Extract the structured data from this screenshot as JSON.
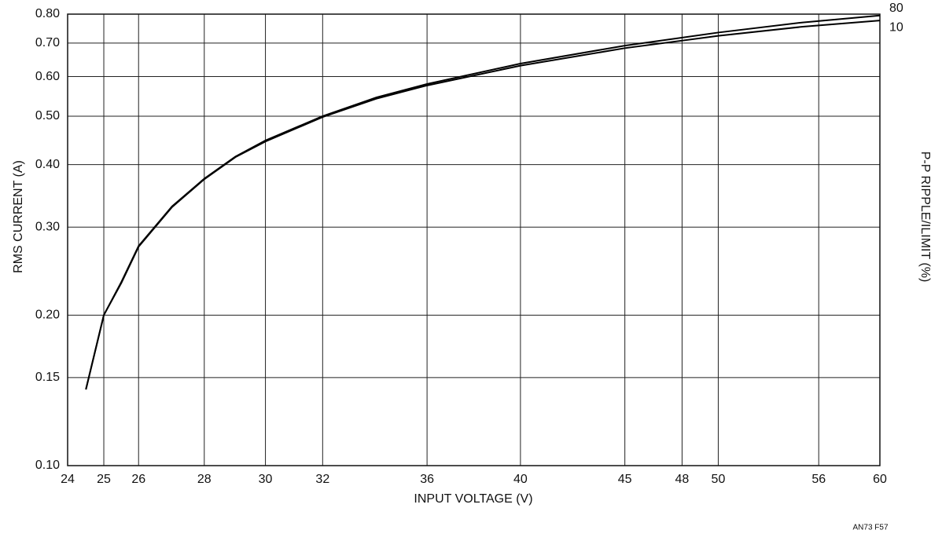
{
  "chart_data": {
    "type": "line",
    "x_label": "INPUT VOLTAGE (V)",
    "y_label": "RMS CURRENT (A)",
    "y2_label": "P-P RIPPLE/ILIMIT (%)",
    "footnote": "AN73 F57",
    "xscale": "log",
    "yscale": "log",
    "grid": true,
    "xlim": [
      24,
      60
    ],
    "xticks": [
      24,
      25,
      26,
      28,
      30,
      32,
      36,
      40,
      45,
      48,
      50,
      56,
      60
    ],
    "ylim": [
      0.1,
      0.8
    ],
    "yticks": [
      {
        "value": 0.1,
        "label": "0.10"
      },
      0.15,
      {
        "value": 0.2,
        "label": "0.20"
      },
      {
        "value": 0.3,
        "label": "0.30"
      },
      {
        "value": 0.4,
        "label": "0.40"
      },
      {
        "value": 0.5,
        "label": "0.50"
      },
      {
        "value": 0.6,
        "label": "0.60"
      },
      {
        "value": 0.7,
        "label": "0.70"
      },
      {
        "value": 0.8,
        "label": "0.80"
      }
    ],
    "x": [
      24.5,
      25,
      25.5,
      26,
      27,
      28,
      29,
      30,
      32,
      34,
      36,
      40,
      45,
      50,
      55,
      60
    ],
    "series": [
      {
        "name": "80",
        "color": "#000000",
        "values": [
          0.142,
          0.2,
          0.233,
          0.275,
          0.33,
          0.375,
          0.415,
          0.447,
          0.5,
          0.545,
          0.58,
          0.637,
          0.692,
          0.735,
          0.77,
          0.795
        ]
      },
      {
        "name": "10",
        "color": "#000000",
        "values": [
          0.142,
          0.2,
          0.232,
          0.274,
          0.329,
          0.374,
          0.414,
          0.445,
          0.498,
          0.542,
          0.576,
          0.631,
          0.684,
          0.724,
          0.755,
          0.777
        ]
      }
    ]
  }
}
